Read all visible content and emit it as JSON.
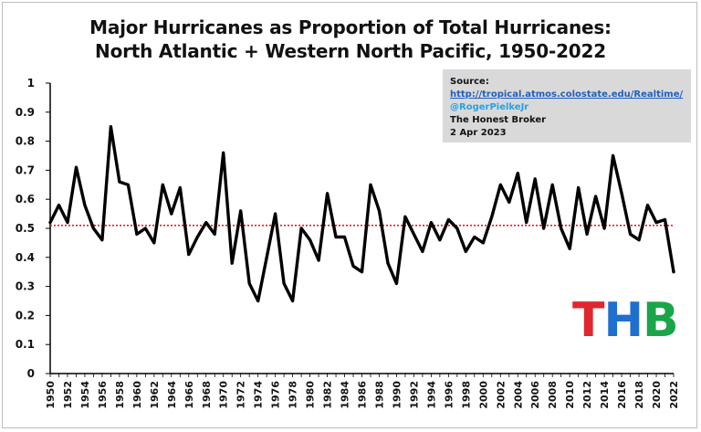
{
  "title_line1": "Major Hurricanes as Proportion of Total Hurricanes:",
  "title_line2": "North Atlantic + Western North Pacific, 1950-2022",
  "source": {
    "label": "Source:",
    "url": "http://tropical.atmos.colostate.edu/Realtime/",
    "handle": "@RogerPielkeJr",
    "publisher": "The Honest Broker",
    "date": "2 Apr 2023"
  },
  "logo": {
    "letters": [
      "T",
      "H",
      "B"
    ],
    "colors": [
      "#e0262e",
      "#1e6fd0",
      "#1aa54a"
    ]
  },
  "chart_data": {
    "type": "line",
    "title": "Major Hurricanes as Proportion of Total Hurricanes: North Atlantic + Western North Pacific, 1950-2022",
    "xlabel": "",
    "ylabel": "",
    "ylim": [
      0,
      1
    ],
    "yticks": [
      "0",
      "0.1",
      "0.2",
      "0.3",
      "0.4",
      "0.5",
      "0.6",
      "0.7",
      "0.8",
      "0.9",
      "1"
    ],
    "xticks": [
      "1950",
      "1952",
      "1954",
      "1956",
      "1958",
      "1960",
      "1962",
      "1964",
      "1966",
      "1968",
      "1970",
      "1972",
      "1974",
      "1976",
      "1978",
      "1980",
      "1982",
      "1984",
      "1986",
      "1988",
      "1990",
      "1992",
      "1994",
      "1996",
      "1998",
      "2000",
      "2002",
      "2004",
      "2006",
      "2008",
      "2010",
      "2012",
      "2014",
      "2016",
      "2018",
      "2020",
      "2022"
    ],
    "grid": false,
    "series": [
      {
        "color": "#000000",
        "x": [
          1950,
          1951,
          1952,
          1953,
          1954,
          1955,
          1956,
          1957,
          1958,
          1959,
          1960,
          1961,
          1962,
          1963,
          1964,
          1965,
          1966,
          1967,
          1968,
          1969,
          1970,
          1971,
          1972,
          1973,
          1974,
          1975,
          1976,
          1977,
          1978,
          1979,
          1980,
          1981,
          1982,
          1983,
          1984,
          1985,
          1986,
          1987,
          1988,
          1989,
          1990,
          1991,
          1992,
          1993,
          1994,
          1995,
          1996,
          1997,
          1998,
          1999,
          2000,
          2001,
          2002,
          2003,
          2004,
          2005,
          2006,
          2007,
          2008,
          2009,
          2010,
          2011,
          2012,
          2013,
          2014,
          2015,
          2016,
          2017,
          2018,
          2019,
          2020,
          2021,
          2022
        ],
        "y": [
          0.52,
          0.58,
          0.52,
          0.71,
          0.58,
          0.5,
          0.46,
          0.85,
          0.66,
          0.65,
          0.48,
          0.5,
          0.45,
          0.65,
          0.55,
          0.64,
          0.41,
          0.47,
          0.52,
          0.48,
          0.76,
          0.38,
          0.56,
          0.31,
          0.25,
          0.4,
          0.55,
          0.31,
          0.25,
          0.5,
          0.46,
          0.39,
          0.62,
          0.47,
          0.47,
          0.37,
          0.35,
          0.65,
          0.56,
          0.38,
          0.31,
          0.54,
          0.48,
          0.42,
          0.52,
          0.46,
          0.53,
          0.5,
          0.42,
          0.47,
          0.45,
          0.54,
          0.65,
          0.59,
          0.69,
          0.52,
          0.67,
          0.5,
          0.65,
          0.5,
          0.43,
          0.64,
          0.48,
          0.61,
          0.5,
          0.75,
          0.62,
          0.48,
          0.46,
          0.58,
          0.52,
          0.53,
          0.35
        ]
      }
    ],
    "reference_line": {
      "y": 0.51,
      "color": "#e02020",
      "style": "dotted"
    }
  }
}
